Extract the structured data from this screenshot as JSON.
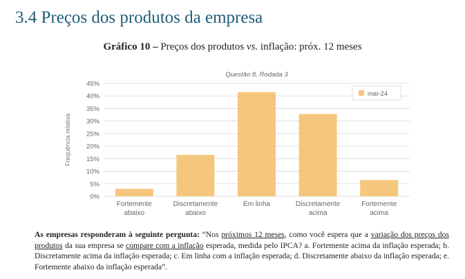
{
  "section": {
    "number": "3.4",
    "title": "Preços dos produtos da empresa"
  },
  "figure": {
    "label": "Gráfico 10",
    "dash": " – ",
    "caption_pre": "Preços dos produtos ",
    "caption_vs": "vs.",
    "caption_post": " inflação: próx. 12 meses"
  },
  "chart_data": {
    "type": "bar",
    "title": "Questão 8, Rodada 3",
    "ylabel": "Frequência relativa",
    "xlabel": "",
    "categories": [
      [
        "Fortemente",
        "abaixo"
      ],
      [
        "Discretamente",
        "abaixo"
      ],
      [
        "Em linha"
      ],
      [
        "Discretamente",
        "acima"
      ],
      [
        "Fortemente",
        "acima"
      ]
    ],
    "series": [
      {
        "name": "mai-24",
        "values": [
          3,
          16.5,
          41.5,
          32.8,
          6.5
        ],
        "color": "#f5c77e"
      }
    ],
    "yticks": [
      "0%",
      "5%",
      "10%",
      "15%",
      "20%",
      "25%",
      "30%",
      "35%",
      "40%",
      "45%"
    ],
    "ylim": [
      0,
      45
    ],
    "grid": true,
    "legend_position": "top-right"
  },
  "note": {
    "lead": "As empresas responderam à seguinte pergunta:",
    "q1": " “Nos ",
    "u1": "próximos 12 meses",
    "q2": ", como você espera que a ",
    "u2": "variação dos preços dos produtos",
    "q3": " da sua empresa se ",
    "u3": "compare com a inflação",
    "q4": " esperada, medida pelo IPCA? a. Fortemente acima da inflação esperada; b. Discretamente acima da inflação esperada; c. Em linha com a inflação esperada; d. Discretamente abaixo da inflação esperada; e. Fortemente abaixo da inflação esperada”."
  }
}
